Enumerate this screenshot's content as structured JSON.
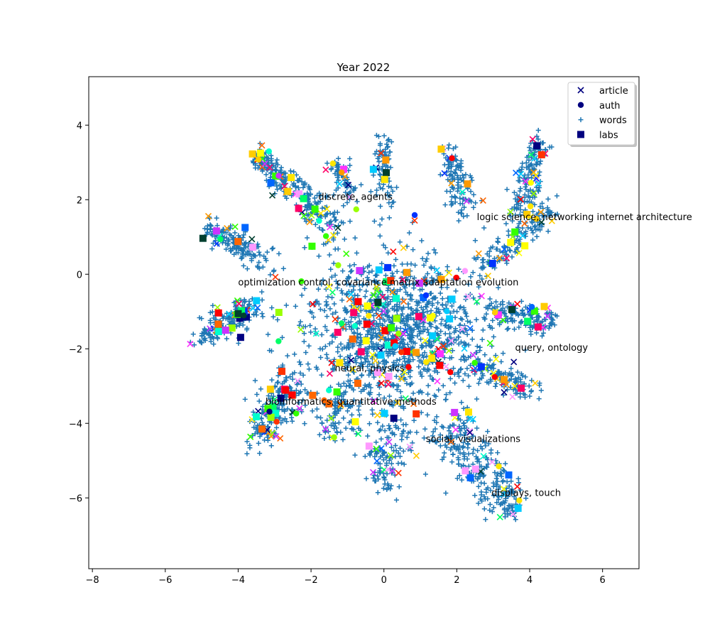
{
  "chart_data": {
    "type": "scatter",
    "title": "Year 2022",
    "xlabel": "",
    "ylabel": "",
    "xlim": [
      -8.1,
      7.0
    ],
    "ylim": [
      -7.9,
      5.3
    ],
    "x_ticks": [
      -8,
      -6,
      -4,
      -2,
      0,
      2,
      4,
      6
    ],
    "x_tick_labels": [
      "−8",
      "−6",
      "−4",
      "−2",
      "0",
      "2",
      "4",
      "6"
    ],
    "y_ticks": [
      -6,
      -4,
      -2,
      0,
      2,
      4
    ],
    "y_tick_labels": [
      "−6",
      "−4",
      "−2",
      "0",
      "2",
      "4"
    ],
    "grid": false,
    "legend": {
      "placement": "top-right",
      "entries": [
        {
          "label": "article",
          "marker": "x",
          "color": "#00007f"
        },
        {
          "label": "auth",
          "marker": "circle",
          "color": "#00007f"
        },
        {
          "label": "words",
          "marker": "plus",
          "color": "#1f77b4"
        },
        {
          "label": "labs",
          "marker": "square",
          "color": "#00007f"
        }
      ]
    },
    "annotations": [
      {
        "text": "discrete, agents",
        "x": -1.8,
        "y": 2.0
      },
      {
        "text": "logic science, networking internet architecture",
        "x": 2.55,
        "y": 1.45
      },
      {
        "text": "optimization control, covariance matrix adaptation evolution",
        "x": -4.0,
        "y": -0.3
      },
      {
        "text": "query, ontology",
        "x": 3.6,
        "y": -2.05
      },
      {
        "text": "neural, physics",
        "x": -1.35,
        "y": -2.6
      },
      {
        "text": "bioinformatics, quantitative methods",
        "x": -3.25,
        "y": -3.5
      },
      {
        "text": "social, visualizations",
        "x": 1.15,
        "y": -4.5
      },
      {
        "text": "displays, touch",
        "x": 2.95,
        "y": -5.95
      }
    ],
    "series": [
      {
        "name": "words",
        "marker": "plus",
        "color": "#1f77b4",
        "clusters": [
          {
            "x": 0.3,
            "y": -1.5,
            "sx": 1.6,
            "sy": 1.3,
            "n": 1100
          },
          {
            "x": -3.5,
            "y": 3.2,
            "to_x": -2.5,
            "to_y": 2.3,
            "n": 140,
            "spread": 0.12
          },
          {
            "x": -1.3,
            "y": 3.0,
            "to_x": -1.0,
            "to_y": 2.2,
            "n": 60,
            "spread": 0.12
          },
          {
            "x": -0.1,
            "y": 3.6,
            "to_x": 0.1,
            "to_y": 2.0,
            "n": 70,
            "spread": 0.12
          },
          {
            "x": 1.9,
            "y": 3.3,
            "to_x": 2.1,
            "to_y": 1.8,
            "n": 110,
            "spread": 0.15
          },
          {
            "x": 4.3,
            "y": 3.6,
            "to_x": 3.7,
            "to_y": 1.6,
            "n": 140,
            "spread": 0.14
          },
          {
            "x": -4.8,
            "y": 1.3,
            "to_x": -3.2,
            "to_y": 0.3,
            "n": 150,
            "spread": 0.14
          },
          {
            "x": -5.0,
            "y": -1.7,
            "to_x": -3.5,
            "to_y": -0.8,
            "n": 160,
            "spread": 0.16
          },
          {
            "x": 4.7,
            "y": -1.3,
            "to_x": 2.8,
            "to_y": -1.0,
            "n": 140,
            "spread": 0.14
          },
          {
            "x": 4.1,
            "y": -3.1,
            "to_x": 2.4,
            "to_y": -2.4,
            "n": 120,
            "spread": 0.14
          },
          {
            "x": 3.6,
            "y": -6.3,
            "to_x": 1.6,
            "to_y": -4.0,
            "n": 260,
            "spread": 0.25
          },
          {
            "x": -0.1,
            "y": -5.6,
            "to_x": 0.4,
            "to_y": -4.0,
            "n": 120,
            "spread": 0.22
          },
          {
            "x": -3.5,
            "y": -4.3,
            "to_x": -2.4,
            "to_y": -2.8,
            "n": 200,
            "spread": 0.22
          },
          {
            "x": -1.5,
            "y": -4.2,
            "to_x": -1.0,
            "to_y": -3.2,
            "n": 90,
            "spread": 0.2
          },
          {
            "x": 4.6,
            "y": 1.8,
            "to_x": 2.7,
            "to_y": 0.1,
            "n": 130,
            "spread": 0.14
          },
          {
            "x": -2.2,
            "y": 2.2,
            "to_x": -1.5,
            "to_y": 1.2,
            "n": 110,
            "spread": 0.2
          }
        ]
      },
      {
        "name": "article",
        "marker": "x",
        "n": 240
      },
      {
        "name": "auth",
        "marker": "circle",
        "n": 45
      },
      {
        "name": "labs",
        "marker": "square",
        "n": 120
      }
    ],
    "category_palette": [
      "#000080",
      "#003f2f",
      "#ff0000",
      "#ff3300",
      "#ff6600",
      "#ff9900",
      "#ffcc00",
      "#ffe600",
      "#99ff00",
      "#33ff00",
      "#00ff66",
      "#00ffcc",
      "#00ccff",
      "#0066ff",
      "#0033ff",
      "#cc33ff",
      "#ff33ff",
      "#ff99ff",
      "#ff0066",
      "#ffff00"
    ]
  }
}
